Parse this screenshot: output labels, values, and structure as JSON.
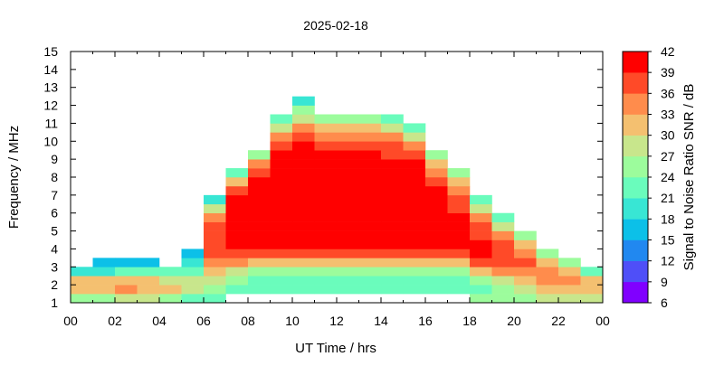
{
  "chart_data": {
    "type": "heatmap",
    "title": "2025-02-18",
    "xlabel": "UT Time / hrs",
    "ylabel": "Frequency / MHz",
    "colorbar_label": "Signal to Noise Ratio SNR / dB",
    "xlim": [
      0,
      24
    ],
    "ylim": [
      1,
      15
    ],
    "clim": [
      6,
      42
    ],
    "x_tick_labels": [
      "00",
      "02",
      "04",
      "06",
      "08",
      "10",
      "12",
      "14",
      "16",
      "18",
      "20",
      "22",
      "00"
    ],
    "y_tick_labels": [
      "1",
      "2",
      "3",
      "4",
      "5",
      "6",
      "7",
      "8",
      "9",
      "10",
      "11",
      "12",
      "13",
      "14",
      "15"
    ],
    "colorbar_tick_labels": [
      "6",
      "9",
      "12",
      "15",
      "18",
      "21",
      "24",
      "27",
      "30",
      "33",
      "36",
      "39",
      "42"
    ],
    "colorbar_colors": [
      "#8000ff",
      "#4f4ff8",
      "#2188f0",
      "#0cc0e8",
      "#38e6d4",
      "#6afcbc",
      "#9cfc9c",
      "#c8e68c",
      "#f4c070",
      "#ff8c4c",
      "#ff4a28",
      "#ff0000"
    ],
    "time_bin_hours": 1,
    "freq_bin_mhz": 0.5,
    "freq_bin_start_mhz": 1,
    "snr_db_by_hour": [
      [
        24,
        30,
        30,
        18
      ],
      [
        24,
        30,
        31,
        20,
        15
      ],
      [
        27,
        33,
        31,
        21,
        15
      ],
      [
        27,
        31,
        30,
        21,
        15
      ],
      [
        24,
        30,
        28,
        21
      ],
      [
        22,
        27,
        27,
        21,
        18,
        15
      ],
      [
        21,
        24,
        27,
        30,
        33,
        36,
        36,
        37,
        36,
        33,
        27,
        18
      ],
      [
        null,
        21,
        24,
        27,
        33,
        36,
        39,
        40,
        40,
        40,
        39,
        39,
        36,
        30,
        21
      ],
      [
        null,
        21,
        22,
        24,
        30,
        36,
        39,
        40,
        40,
        40,
        40,
        40,
        39,
        39,
        36,
        33,
        24
      ],
      [
        null,
        21,
        22,
        24,
        30,
        36,
        39,
        40,
        41,
        41,
        41,
        41,
        41,
        40,
        40,
        39,
        39,
        36,
        33,
        27,
        21
      ],
      [
        null,
        21,
        22,
        25,
        30,
        36,
        39,
        41,
        41,
        41,
        41,
        41,
        41,
        41,
        40,
        40,
        39,
        39,
        37,
        33,
        27,
        24,
        18
      ],
      [
        null,
        21,
        22,
        25,
        30,
        36,
        39,
        41,
        41,
        41,
        41,
        41,
        41,
        40,
        40,
        39,
        39,
        37,
        33,
        30,
        24
      ],
      [
        null,
        21,
        22,
        25,
        30,
        36,
        39,
        41,
        41,
        41,
        41,
        41,
        41,
        40,
        40,
        39,
        39,
        37,
        33,
        30,
        24
      ],
      [
        null,
        21,
        22,
        25,
        30,
        36,
        39,
        41,
        41,
        41,
        41,
        41,
        41,
        40,
        40,
        39,
        39,
        37,
        33,
        30,
        24
      ],
      [
        null,
        21,
        22,
        25,
        30,
        36,
        39,
        41,
        41,
        41,
        41,
        41,
        40,
        40,
        39,
        39,
        37,
        36,
        33,
        27,
        21
      ],
      [
        null,
        21,
        22,
        25,
        30,
        36,
        39,
        41,
        41,
        41,
        40,
        40,
        40,
        40,
        39,
        39,
        36,
        33,
        27,
        21
      ],
      [
        null,
        21,
        22,
        25,
        30,
        36,
        39,
        40,
        40,
        40,
        40,
        39,
        39,
        37,
        33,
        30,
        24
      ],
      [
        null,
        21,
        22,
        25,
        30,
        36,
        39,
        40,
        39,
        39,
        37,
        36,
        33,
        30,
        24
      ],
      [
        24,
        22,
        24,
        30,
        36,
        39,
        39,
        37,
        36,
        33,
        27,
        21
      ],
      [
        24,
        24,
        27,
        33,
        36,
        37,
        36,
        33,
        27,
        21
      ],
      [
        24,
        27,
        30,
        33,
        36,
        33,
        30,
        24
      ],
      [
        27,
        30,
        33,
        33,
        30,
        24
      ],
      [
        27,
        30,
        33,
        30,
        24
      ],
      [
        27,
        30,
        30,
        21
      ]
    ]
  }
}
